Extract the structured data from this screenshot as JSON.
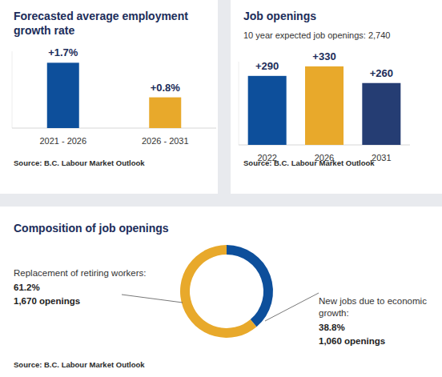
{
  "chart_data": [
    {
      "type": "bar",
      "title": "Forecasted average employment growth rate",
      "categories": [
        "2021 - 2026",
        "2026 - 2031"
      ],
      "values": [
        1.7,
        0.8
      ],
      "value_labels": [
        "+1.7%",
        "+0.8%"
      ],
      "colors": [
        "#0d4f9b",
        "#e8a92b"
      ],
      "ylim": [
        0,
        2
      ],
      "tick_labels": false,
      "data_labels": true,
      "source": "Source: B.C. Labour Market Outlook"
    },
    {
      "type": "bar",
      "title": "Job openings",
      "subtitle": "10 year expected job openings: 2,740",
      "categories": [
        "2022",
        "2026",
        "2031"
      ],
      "values": [
        290,
        330,
        260
      ],
      "value_labels": [
        "+290",
        "+330",
        "+260"
      ],
      "colors": [
        "#0d4f9b",
        "#e8a92b",
        "#253d73"
      ],
      "ylim": [
        0,
        350
      ],
      "tick_labels": false,
      "data_labels": true,
      "source": "Source: B.C. Labour Market Outlook"
    },
    {
      "type": "donut",
      "title": "Composition of job openings",
      "categories": [
        "Replacement of retiring workers:",
        "New jobs due to economic growth:"
      ],
      "values": [
        61.2,
        38.8
      ],
      "value_labels": [
        "61.2%",
        "38.8%"
      ],
      "count_labels": [
        "1,670 openings",
        "1,060 openings"
      ],
      "colors": [
        "#e8a92b",
        "#0d4f9b"
      ],
      "data_labels": true,
      "source": "Source: B.C. Labour Market Outlook"
    }
  ]
}
